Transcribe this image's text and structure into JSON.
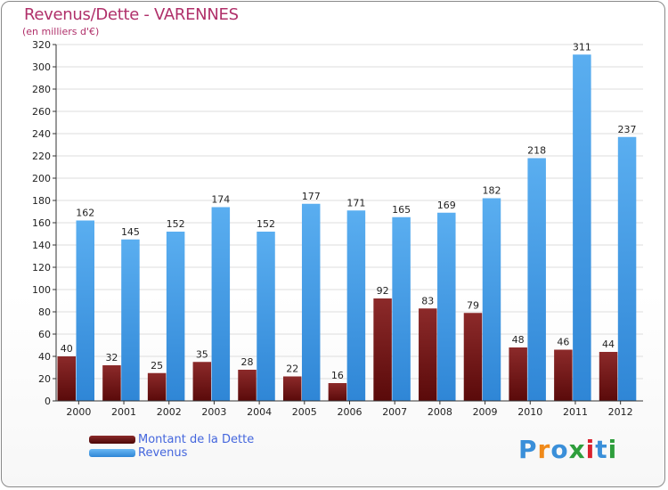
{
  "header": {
    "title": "Revenus/Dette - VARENNES",
    "subtitle": "(en milliers d'€)"
  },
  "colors": {
    "debt": "#7a1a1a",
    "revenue": "#4da3e8",
    "axis": "#333333",
    "grid": "#dddddd"
  },
  "legend": {
    "items": [
      {
        "label": "Montant de la Dette",
        "color": "#6b0f0f"
      },
      {
        "label": "Revenus",
        "color": "#4da3e8"
      }
    ]
  },
  "logo": {
    "letters": [
      "P",
      "r",
      "o",
      "x",
      "i",
      "t",
      "i"
    ],
    "colors": [
      "#3a8fd9",
      "#f08a1a",
      "#3a8fd9",
      "#2e9e3c",
      "#d9222e",
      "#3a8fd9",
      "#2e9e3c"
    ]
  },
  "chart_data": {
    "type": "bar",
    "title": "Revenus/Dette - VARENNES",
    "ylabel": "(en milliers d'€)",
    "xlabel": "",
    "ylim": [
      0,
      320
    ],
    "yticks": [
      0,
      20,
      40,
      60,
      80,
      100,
      120,
      140,
      160,
      180,
      200,
      220,
      240,
      260,
      280,
      300,
      320
    ],
    "categories": [
      "2000",
      "2001",
      "2002",
      "2003",
      "2004",
      "2005",
      "2006",
      "2007",
      "2008",
      "2009",
      "2010",
      "2011",
      "2012"
    ],
    "series": [
      {
        "name": "Montant de la Dette",
        "values": [
          40,
          32,
          25,
          35,
          28,
          22,
          16,
          92,
          83,
          79,
          48,
          46,
          44
        ]
      },
      {
        "name": "Revenus",
        "values": [
          162,
          145,
          152,
          174,
          152,
          177,
          171,
          165,
          169,
          182,
          218,
          311,
          237
        ]
      }
    ],
    "legend_position": "bottom-left"
  }
}
